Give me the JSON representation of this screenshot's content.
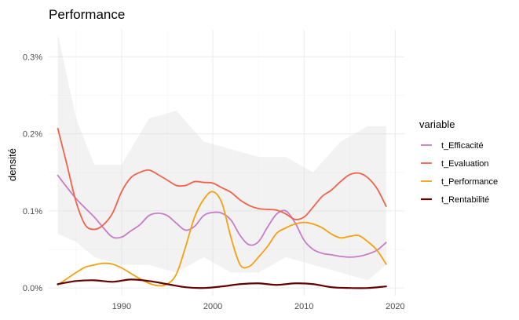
{
  "chart_data": {
    "type": "line",
    "title": "Performance",
    "xlabel": "",
    "ylabel": "densité",
    "xlim": [
      1982,
      2021
    ],
    "ylim": [
      -0.0001,
      0.00335
    ],
    "x_ticks": [
      1990,
      2000,
      2010,
      2020
    ],
    "x_tick_labels": [
      "1990",
      "2000",
      "2010",
      "2020"
    ],
    "y_ticks": [
      0,
      0.001,
      0.002,
      0.003
    ],
    "y_tick_labels": [
      "0.0%",
      "0.1%",
      "0.2%",
      "0.3%"
    ],
    "grid": true,
    "legend": {
      "title": "variable",
      "position": "right"
    },
    "colors": {
      "t_Efficacité": "#c77cc7",
      "t_Evaluation": "#f0634a",
      "t_Performance": "#f5a00f",
      "t_Rentabilité": "#650000",
      "band": "#d9d9d9"
    },
    "series": [
      {
        "name": "t_Efficacité",
        "x": [
          1983,
          1985,
          1987,
          1988,
          1989,
          1990,
          1991,
          1992,
          1993,
          1994,
          1995,
          1996,
          1997,
          1998,
          1999,
          2000,
          2001,
          2002,
          2003,
          2004,
          2005,
          2006,
          2007,
          2008,
          2009,
          2010,
          2011,
          2012,
          2013,
          2014,
          2015,
          2016,
          2017,
          2018,
          2019
        ],
        "y": [
          0.00146,
          0.00116,
          0.00092,
          0.00078,
          0.00066,
          0.00066,
          0.00074,
          0.00082,
          0.00094,
          0.00097,
          0.00094,
          0.00084,
          0.00075,
          0.0008,
          0.00094,
          0.00098,
          0.00097,
          0.00088,
          0.00068,
          0.00056,
          0.0006,
          0.00079,
          0.00096,
          0.001,
          0.00085,
          0.00062,
          0.0005,
          0.00045,
          0.00043,
          0.00041,
          0.0004,
          0.00041,
          0.00044,
          0.00049,
          0.00059
        ],
        "band": [
          [
            1983,
            0.0007,
            0.0033
          ],
          [
            1985,
            0.0006,
            0.0022
          ],
          [
            1987,
            0.0004,
            0.0016
          ],
          [
            1990,
            0.0003,
            0.0016
          ],
          [
            1993,
            0.0003,
            0.0022
          ],
          [
            1996,
            0.0002,
            0.0023
          ],
          [
            1999,
            0.0004,
            0.0019
          ],
          [
            2002,
            0.0002,
            0.0018
          ],
          [
            2005,
            0.0002,
            0.0017
          ],
          [
            2008,
            0.0004,
            0.0017
          ],
          [
            2011,
            0.0003,
            0.0015
          ],
          [
            2014,
            0.0002,
            0.0019
          ],
          [
            2017,
            0.0001,
            0.0021
          ],
          [
            2019,
            0.0003,
            0.0021
          ]
        ]
      },
      {
        "name": "t_Evaluation",
        "x": [
          1983,
          1984,
          1985,
          1986,
          1987,
          1988,
          1989,
          1990,
          1991,
          1992,
          1993,
          1994,
          1995,
          1996,
          1997,
          1998,
          1999,
          2000,
          2001,
          2002,
          2003,
          2004,
          2005,
          2006,
          2007,
          2008,
          2009,
          2010,
          2011,
          2012,
          2013,
          2014,
          2015,
          2016,
          2017,
          2018,
          2019
        ],
        "y": [
          0.00207,
          0.0016,
          0.00112,
          0.00082,
          0.00076,
          0.00082,
          0.00097,
          0.00125,
          0.00143,
          0.0015,
          0.00153,
          0.00147,
          0.0014,
          0.00133,
          0.00133,
          0.00138,
          0.00137,
          0.00136,
          0.0013,
          0.00124,
          0.00114,
          0.00107,
          0.00103,
          0.00102,
          0.00101,
          0.00096,
          0.00089,
          0.00092,
          0.00105,
          0.00119,
          0.00127,
          0.00138,
          0.00147,
          0.00149,
          0.00143,
          0.00129,
          0.00106
        ]
      },
      {
        "name": "t_Performance",
        "x": [
          1983,
          1984,
          1985,
          1986,
          1987,
          1988,
          1989,
          1990,
          1991,
          1992,
          1993,
          1994,
          1995,
          1996,
          1997,
          1998,
          1999,
          2000,
          2001,
          2002,
          2003,
          2004,
          2005,
          2006,
          2007,
          2008,
          2009,
          2010,
          2011,
          2012,
          2013,
          2014,
          2015,
          2016,
          2017,
          2018,
          2019
        ],
        "y": [
          4e-05,
          0.00012,
          0.0002,
          0.00027,
          0.0003,
          0.00032,
          0.00031,
          0.00026,
          0.00019,
          0.00012,
          6e-05,
          3e-05,
          5e-05,
          0.00018,
          0.00053,
          0.00092,
          0.00115,
          0.00125,
          0.0011,
          0.00065,
          0.0003,
          0.00028,
          0.0004,
          0.00054,
          0.00071,
          0.00078,
          0.00083,
          0.00085,
          0.00083,
          0.00078,
          0.0007,
          0.00065,
          0.00067,
          0.00068,
          0.0006,
          0.00049,
          0.00031
        ]
      },
      {
        "name": "t_Rentabilité",
        "x": [
          1983,
          1985,
          1987,
          1989,
          1991,
          1993,
          1995,
          1997,
          1999,
          2001,
          2003,
          2005,
          2007,
          2009,
          2011,
          2013,
          2015,
          2017,
          2019
        ],
        "y": [
          5e-05,
          9e-05,
          0.0001,
          8e-05,
          0.00011,
          9e-05,
          5e-05,
          1e-05,
          0.0,
          2e-05,
          5e-05,
          6e-05,
          4e-05,
          6e-05,
          5e-05,
          1e-05,
          0.0,
          0.0,
          2e-05
        ]
      }
    ]
  }
}
